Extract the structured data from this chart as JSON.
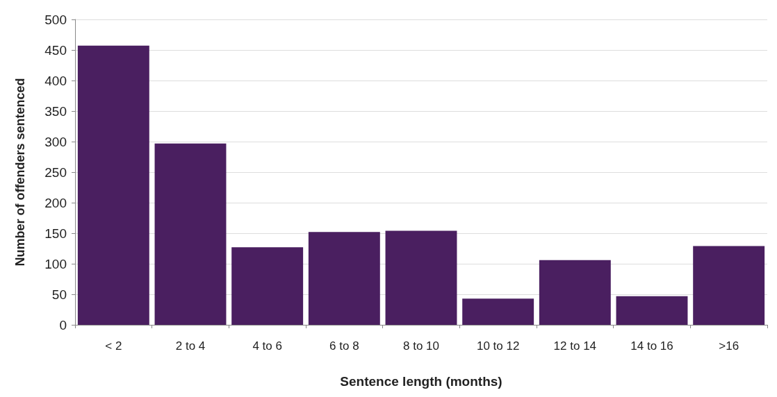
{
  "chart_data": {
    "type": "bar",
    "xlabel": "Sentence length (months)",
    "ylabel": "Number of offenders sentenced",
    "categories": [
      "< 2",
      "2 to 4",
      "4 to 6",
      "6 to 8",
      "8 to 10",
      "10 to 12",
      "12 to 14",
      "14 to 16",
      ">16"
    ],
    "values": [
      457,
      297,
      127,
      152,
      154,
      43,
      106,
      47,
      129
    ],
    "color": "#4a1f60",
    "ylim": [
      0,
      500
    ],
    "yticks": [
      0,
      50,
      100,
      150,
      200,
      250,
      300,
      350,
      400,
      450,
      500
    ],
    "grid": "y"
  }
}
